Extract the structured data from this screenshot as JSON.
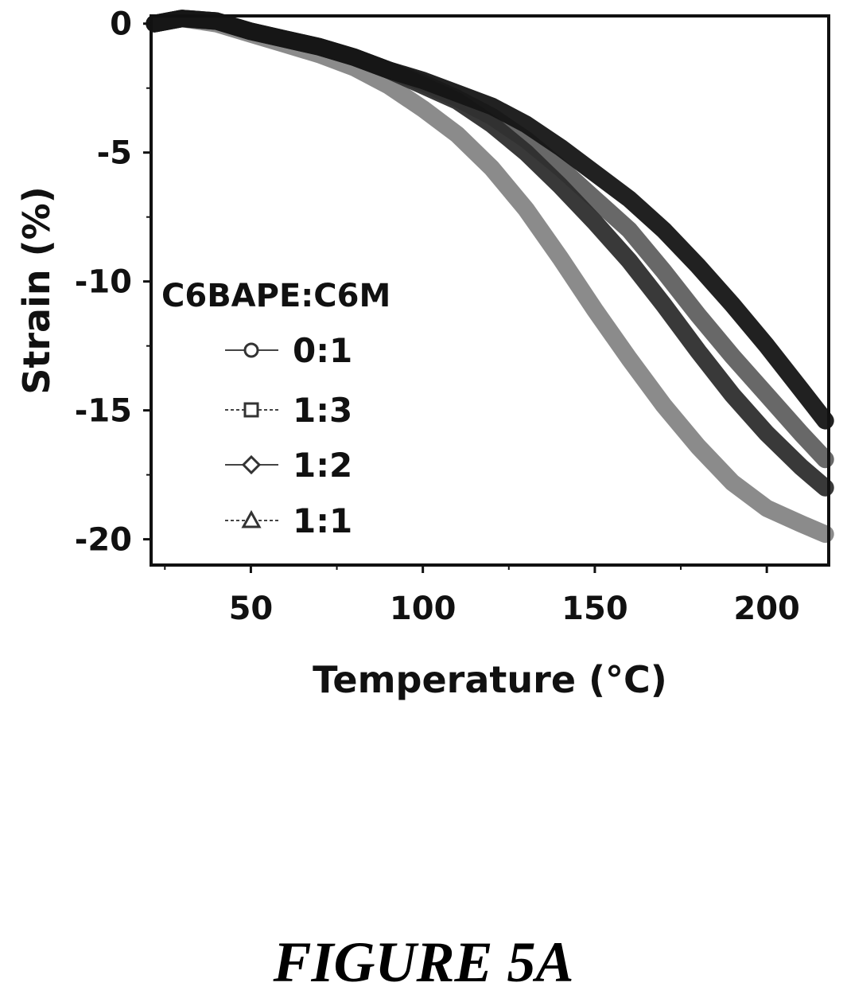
{
  "figure_caption": "FIGURE 5A",
  "chart_data": {
    "type": "line",
    "title": "",
    "xlabel": "Temperature (°C)",
    "ylabel": "Strain (%)",
    "xlim": [
      21,
      218
    ],
    "ylim": [
      -21,
      0.3
    ],
    "x_ticks": [
      50,
      100,
      150,
      200
    ],
    "y_ticks": [
      0,
      -5,
      -10,
      -15,
      -20
    ],
    "grid": false,
    "legend": {
      "title": "C6BAPE:C6M",
      "placement": "middle-left"
    },
    "x": [
      22,
      30,
      40,
      50,
      60,
      70,
      80,
      90,
      100,
      110,
      120,
      130,
      140,
      150,
      160,
      170,
      180,
      190,
      200,
      210,
      217
    ],
    "series": [
      {
        "name": "0:1",
        "marker": "circle",
        "color": "#151515",
        "values": [
          0.0,
          0.2,
          0.1,
          -0.3,
          -0.6,
          -0.9,
          -1.3,
          -1.8,
          -2.2,
          -2.7,
          -3.2,
          -3.9,
          -4.8,
          -5.8,
          -6.8,
          -8.0,
          -9.4,
          -10.9,
          -12.5,
          -14.2,
          -15.4
        ]
      },
      {
        "name": "1:3",
        "marker": "square",
        "color": "#606060",
        "values": [
          0.0,
          0.2,
          0.1,
          -0.3,
          -0.6,
          -0.9,
          -1.3,
          -1.8,
          -2.3,
          -2.9,
          -3.6,
          -4.5,
          -5.6,
          -6.8,
          -8.0,
          -9.6,
          -11.3,
          -12.9,
          -14.4,
          -15.9,
          -16.9
        ]
      },
      {
        "name": "1:2",
        "marker": "diamond",
        "color": "#2e2e2e",
        "values": [
          0.0,
          0.2,
          0.1,
          -0.3,
          -0.6,
          -0.9,
          -1.3,
          -1.8,
          -2.4,
          -3.0,
          -3.9,
          -5.0,
          -6.3,
          -7.7,
          -9.2,
          -10.9,
          -12.7,
          -14.4,
          -15.9,
          -17.2,
          -18.0
        ]
      },
      {
        "name": "1:1",
        "marker": "triangle",
        "color": "#858585",
        "values": [
          0.0,
          0.2,
          0.0,
          -0.4,
          -0.8,
          -1.2,
          -1.7,
          -2.4,
          -3.3,
          -4.3,
          -5.6,
          -7.2,
          -9.1,
          -11.1,
          -13.0,
          -14.8,
          -16.4,
          -17.8,
          -18.8,
          -19.4,
          -19.8
        ]
      }
    ]
  }
}
